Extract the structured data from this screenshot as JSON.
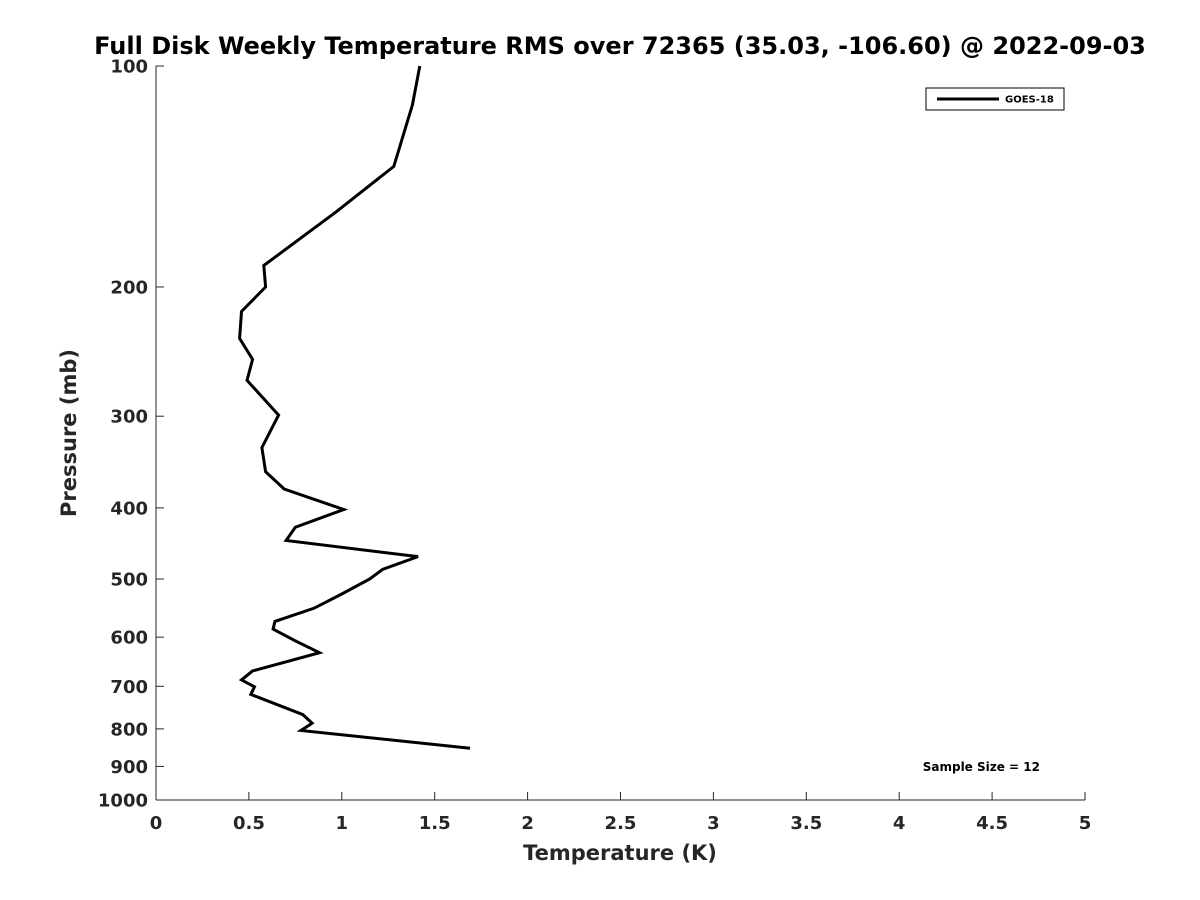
{
  "chart_data": {
    "type": "line",
    "title": "Full Disk Weekly Temperature RMS over 72365 (35.03, -106.60) @ 2022-09-03",
    "xlabel": "Temperature (K)",
    "ylabel": "Pressure (mb)",
    "xlim": [
      0,
      5
    ],
    "ylim": [
      100,
      1000
    ],
    "y_scale": "log",
    "y_reversed": true,
    "x_ticks": [
      "0",
      "0.5",
      "1",
      "1.5",
      "2",
      "2.5",
      "3",
      "3.5",
      "4",
      "4.5",
      "5"
    ],
    "y_ticks": [
      "100",
      "200",
      "300",
      "400",
      "500",
      "600",
      "700",
      "800",
      "900",
      "1000"
    ],
    "grid": false,
    "legend_position": "top-right",
    "annotation": "Sample Size = 12",
    "series": [
      {
        "name": "GOES-18",
        "color": "#000000",
        "x": [
          1.42,
          1.38,
          1.28,
          0.97,
          0.58,
          0.59,
          0.46,
          0.45,
          0.52,
          0.49,
          0.66,
          0.57,
          0.59,
          0.69,
          1.01,
          0.75,
          0.7,
          1.41,
          1.22,
          1.15,
          1.0,
          0.85,
          0.64,
          0.63,
          0.75,
          0.88,
          0.52,
          0.46,
          0.53,
          0.51,
          0.79,
          0.84,
          0.78,
          1.12,
          1.69
        ],
        "y": [
          100,
          113,
          137,
          158,
          187,
          200,
          216,
          235,
          251,
          268,
          299,
          331,
          357,
          377,
          402,
          425,
          443,
          466,
          485,
          500,
          524,
          548,
          571,
          585,
          607,
          630,
          667,
          686,
          701,
          718,
          765,
          786,
          804,
          821,
          850
        ]
      }
    ]
  }
}
